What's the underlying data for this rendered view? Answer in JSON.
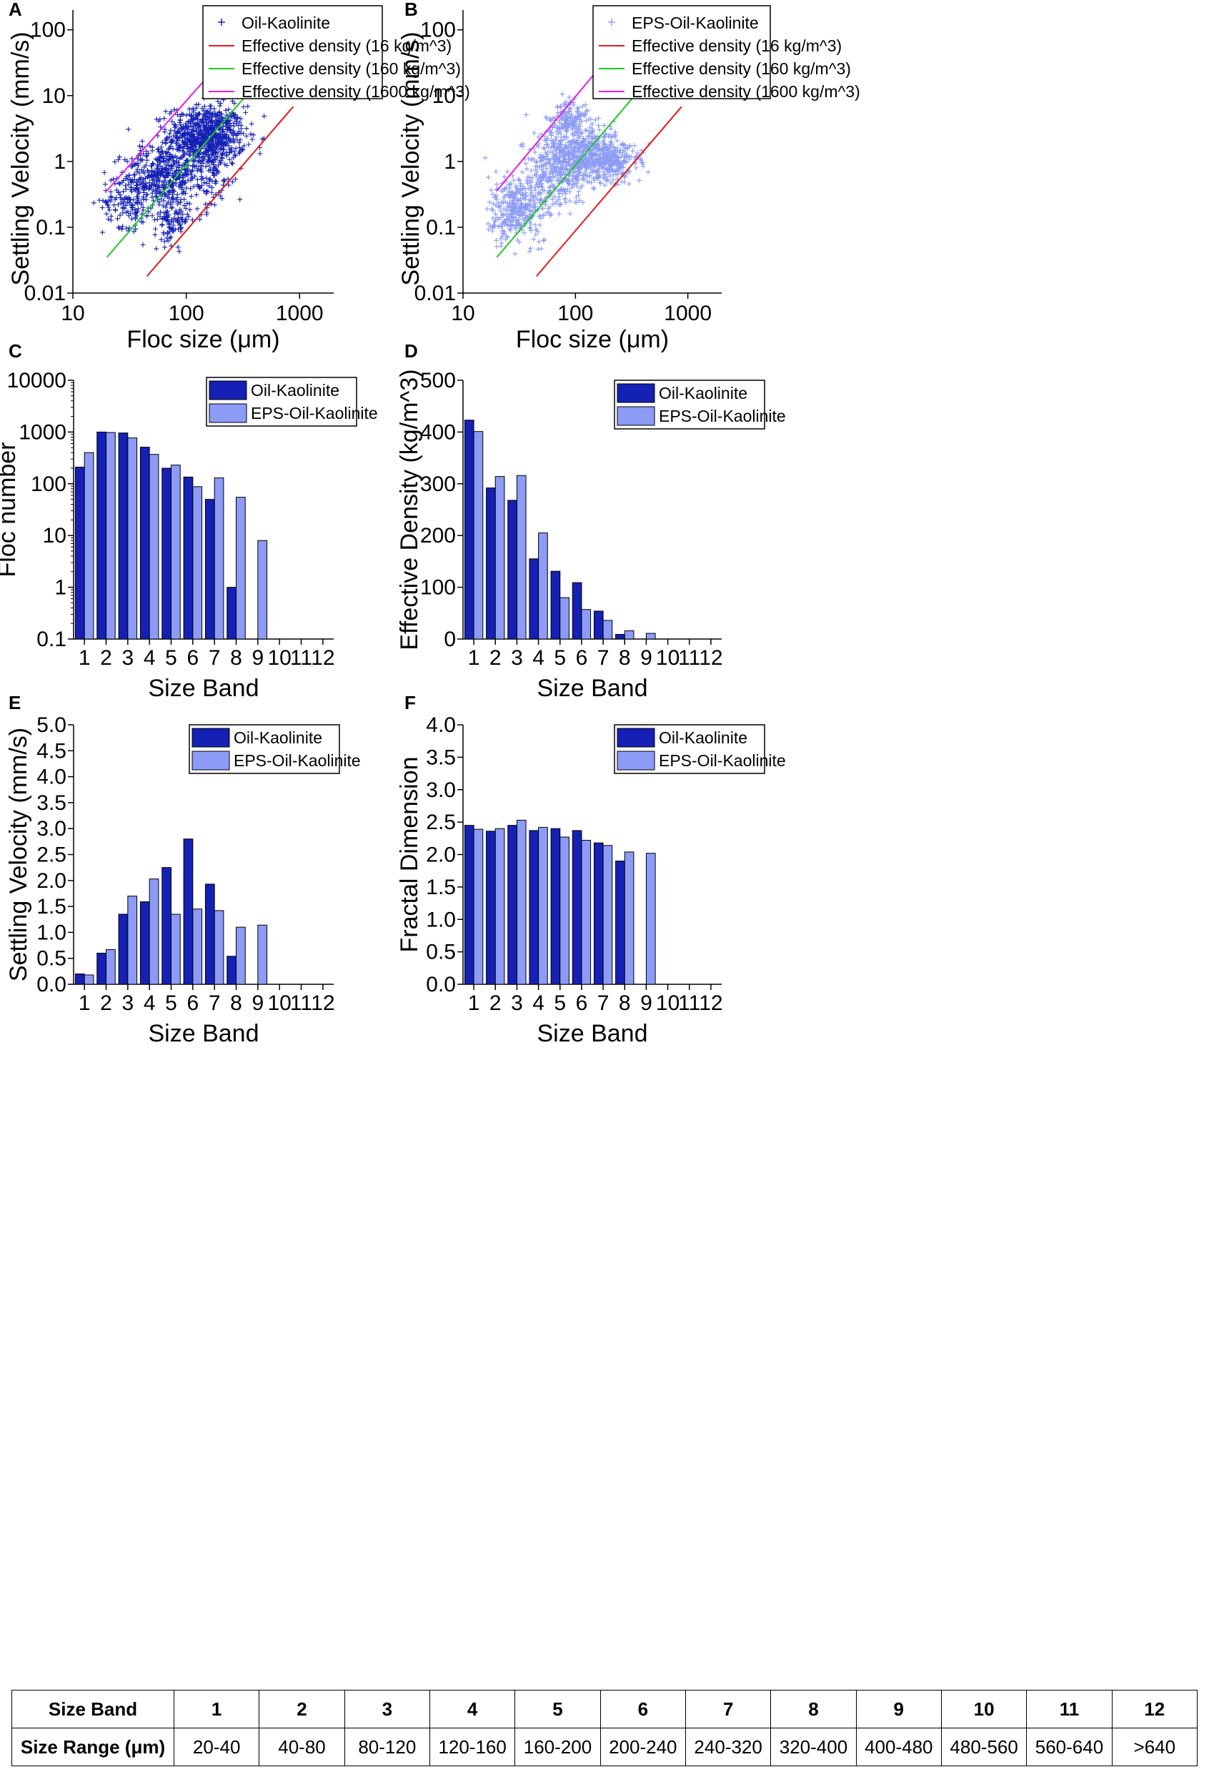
{
  "colors": {
    "oil": "#1520b5",
    "eps": "#8c9bf5",
    "red": "#e41a1c",
    "green": "#1ec81e",
    "magenta": "#e61ee6",
    "axis": "#000000"
  },
  "chart_data": [
    {
      "panel": "A",
      "type": "scatter",
      "xscale": "log",
      "yscale": "log",
      "xlim": [
        10,
        2000
      ],
      "ylim": [
        0.01,
        200
      ],
      "xlabel": "Floc size (μm)",
      "ylabel": "Settling Velocity (mm/s)",
      "xticks": [
        "10",
        "100",
        "1000"
      ],
      "yticks": [
        "0.01",
        "0.1",
        "1",
        "10",
        "100"
      ],
      "series_name": "Oil-Kaolinite",
      "lines": [
        {
          "name": "Effective density (16 kg/m^3)",
          "x": [
            45,
            880
          ],
          "y": [
            0.018,
            6.8
          ]
        },
        {
          "name": "Effective density (160 kg/m^3)",
          "x": [
            20,
            950
          ],
          "y": [
            0.035,
            80
          ]
        },
        {
          "name": "Effective density (1600 kg/m^3)",
          "x": [
            20,
            235
          ],
          "y": [
            0.36,
            44
          ]
        }
      ],
      "clusters": [
        {
          "cx": 150,
          "cy": 2.4,
          "sx": 0.17,
          "sy": 0.23,
          "n": 750
        },
        {
          "cx": 60,
          "cy": 0.6,
          "sx": 0.16,
          "sy": 0.22,
          "n": 350
        },
        {
          "cx": 32,
          "cy": 0.25,
          "sx": 0.12,
          "sy": 0.2,
          "n": 140
        },
        {
          "cx": 75,
          "cy": 0.13,
          "sx": 0.08,
          "sy": 0.18,
          "n": 110
        },
        {
          "cx": 150,
          "cy": 0.6,
          "sx": 0.13,
          "sy": 0.28,
          "n": 110
        }
      ],
      "legend_position": "top-right"
    },
    {
      "panel": "B",
      "type": "scatter",
      "xscale": "log",
      "yscale": "log",
      "xlim": [
        10,
        2000
      ],
      "ylim": [
        0.01,
        200
      ],
      "xlabel": "Floc size (μm)",
      "ylabel": "Settling Velocity (mm/s)",
      "xticks": [
        "10",
        "100",
        "1000"
      ],
      "yticks": [
        "0.01",
        "0.1",
        "1",
        "10",
        "100"
      ],
      "series_name": "EPS-Oil-Kaolinite",
      "lines": [
        {
          "name": "Effective density (16 kg/m^3)",
          "x": [
            45,
            880
          ],
          "y": [
            0.018,
            6.8
          ]
        },
        {
          "name": "Effective density (160 kg/m^3)",
          "x": [
            20,
            950
          ],
          "y": [
            0.035,
            80
          ]
        },
        {
          "name": "Effective density (1600 kg/m^3)",
          "x": [
            20,
            210
          ],
          "y": [
            0.36,
            44
          ]
        }
      ],
      "clusters": [
        {
          "cx": 115,
          "cy": 1.2,
          "sx": 0.2,
          "sy": 0.23,
          "n": 700
        },
        {
          "cx": 30,
          "cy": 0.2,
          "sx": 0.13,
          "sy": 0.25,
          "n": 320
        },
        {
          "cx": 90,
          "cy": 4.5,
          "sx": 0.08,
          "sy": 0.15,
          "n": 140
        },
        {
          "cx": 60,
          "cy": 0.5,
          "sx": 0.14,
          "sy": 0.25,
          "n": 200
        },
        {
          "cx": 250,
          "cy": 1.0,
          "sx": 0.12,
          "sy": 0.15,
          "n": 120
        }
      ],
      "legend_position": "top-right"
    },
    {
      "panel": "C",
      "type": "bar",
      "yscale": "log",
      "ylim": [
        0.1,
        10000
      ],
      "xlabel": "Size Band",
      "ylabel": "Floc number",
      "categories": [
        "1",
        "2",
        "3",
        "4",
        "5",
        "6",
        "7",
        "8",
        "9",
        "10",
        "11",
        "12"
      ],
      "yticks": [
        "0.1",
        "1",
        "10",
        "100",
        "1000",
        "10000"
      ],
      "series": [
        {
          "name": "Oil-Kaolinite",
          "values": [
            210,
            1000,
            960,
            510,
            200,
            135,
            50,
            1,
            null,
            null,
            null,
            null
          ]
        },
        {
          "name": "EPS-Oil-Kaolinite",
          "values": [
            400,
            980,
            770,
            370,
            230,
            88,
            130,
            55,
            8,
            null,
            null,
            null
          ]
        }
      ],
      "legend_position": "top-right"
    },
    {
      "panel": "D",
      "type": "bar",
      "ylim": [
        0,
        500
      ],
      "xlabel": "Size Band",
      "ylabel": "Effective Density (kg/m^3)",
      "categories": [
        "1",
        "2",
        "3",
        "4",
        "5",
        "6",
        "7",
        "8",
        "9",
        "10",
        "11",
        "12"
      ],
      "yticks": [
        "0",
        "100",
        "200",
        "300",
        "400",
        "500"
      ],
      "series": [
        {
          "name": "Oil-Kaolinite",
          "values": [
            423,
            292,
            268,
            155,
            131,
            109,
            54,
            9,
            null,
            null,
            null,
            null
          ]
        },
        {
          "name": "EPS-Oil-Kaolinite",
          "values": [
            401,
            314,
            316,
            205,
            80,
            57,
            36,
            16,
            11,
            null,
            null,
            null
          ]
        }
      ],
      "legend_position": "top-right"
    },
    {
      "panel": "E",
      "type": "bar",
      "ylim": [
        0,
        5
      ],
      "xlabel": "Size Band",
      "ylabel": "Settling Velocity (mm/s)",
      "categories": [
        "1",
        "2",
        "3",
        "4",
        "5",
        "6",
        "7",
        "8",
        "9",
        "10",
        "11",
        "12"
      ],
      "yticks": [
        "0.0",
        "0.5",
        "1.0",
        "1.5",
        "2.0",
        "2.5",
        "3.0",
        "3.5",
        "4.0",
        "4.5",
        "5.0"
      ],
      "series": [
        {
          "name": "Oil-Kaolinite",
          "values": [
            0.2,
            0.6,
            1.35,
            1.59,
            2.25,
            2.8,
            1.93,
            0.54,
            null,
            null,
            null,
            null
          ]
        },
        {
          "name": "EPS-Oil-Kaolinite",
          "values": [
            0.18,
            0.67,
            1.7,
            2.03,
            1.35,
            1.45,
            1.42,
            1.1,
            1.14,
            null,
            null,
            null
          ]
        }
      ],
      "legend_position": "top-right"
    },
    {
      "panel": "F",
      "type": "bar",
      "ylim": [
        0,
        4
      ],
      "xlabel": "Size Band",
      "ylabel": "Fractal Dimension",
      "categories": [
        "1",
        "2",
        "3",
        "4",
        "5",
        "6",
        "7",
        "8",
        "9",
        "10",
        "11",
        "12"
      ],
      "yticks": [
        "0.0",
        "0.5",
        "1.0",
        "1.5",
        "2.0",
        "2.5",
        "3.0",
        "3.5",
        "4.0"
      ],
      "series": [
        {
          "name": "Oil-Kaolinite",
          "values": [
            2.45,
            2.36,
            2.45,
            2.37,
            2.4,
            2.37,
            2.18,
            1.9,
            null,
            null,
            null,
            null
          ]
        },
        {
          "name": "EPS-Oil-Kaolinite",
          "values": [
            2.39,
            2.4,
            2.53,
            2.42,
            2.27,
            2.22,
            2.14,
            2.04,
            2.02,
            null,
            null,
            null
          ]
        }
      ],
      "legend_position": "top-right"
    }
  ],
  "table": {
    "row1_label": "Size Band",
    "bands": [
      "1",
      "2",
      "3",
      "4",
      "5",
      "6",
      "7",
      "8",
      "9",
      "10",
      "11",
      "12"
    ],
    "row2_label": "Size Range (μm)",
    "ranges": [
      "20-40",
      "40-80",
      "80-120",
      "120-160",
      "160-200",
      "200-240",
      "240-320",
      "320-400",
      "400-480",
      "480-560",
      "560-640",
      ">640"
    ]
  }
}
